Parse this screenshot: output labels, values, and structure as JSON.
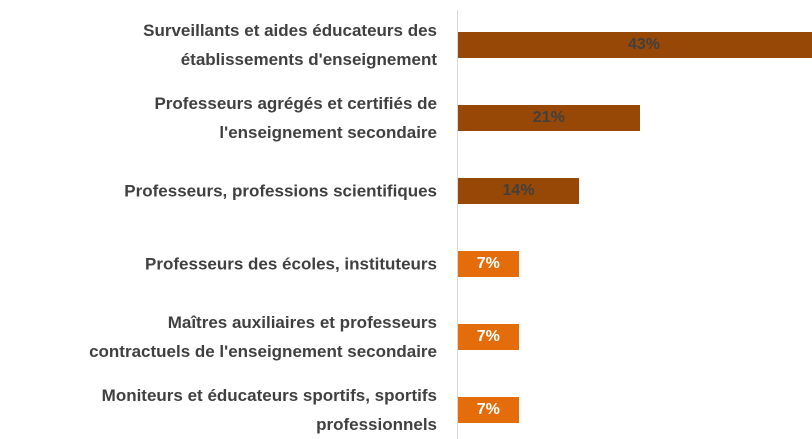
{
  "chart_data": {
    "type": "bar",
    "orientation": "horizontal",
    "categories": [
      "Surveillants et aides éducateurs des\nétablissements d'enseignement",
      "Professeurs agrégés et certifiés de\nl'enseignement secondaire",
      "Professeurs, professions scientifiques",
      "Professeurs des écoles, instituteurs",
      "Maîtres auxiliaires et professeurs\ncontractuels de l'enseignement secondaire",
      "Moniteurs et éducateurs sportifs, sportifs\nprofessionnels"
    ],
    "values": [
      43,
      21,
      14,
      7,
      7,
      7
    ],
    "value_labels": [
      "43%",
      "21%",
      "14%",
      "7%",
      "7%",
      "7%"
    ],
    "colors": [
      "#974706",
      "#974706",
      "#974706",
      "#e46c0a",
      "#e46c0a",
      "#e46c0a"
    ],
    "label_colors": [
      "#404040",
      "#404040",
      "#404040",
      "#ffffff",
      "#ffffff",
      "#ffffff"
    ]
  }
}
